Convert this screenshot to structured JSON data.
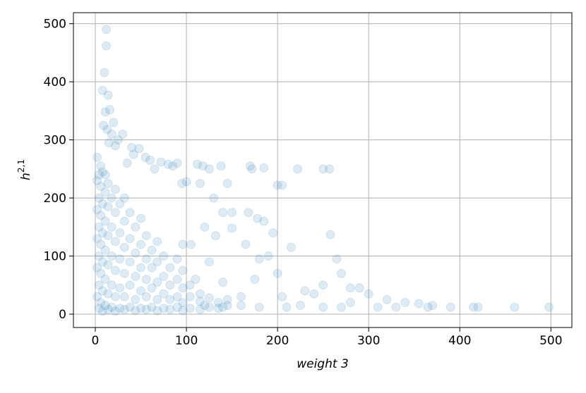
{
  "chart_data": {
    "type": "scatter",
    "xlabel": "weight 3",
    "ylabel": "h",
    "ylabel_superscript": "2,1",
    "color": "#1f77b4",
    "alpha": 0.15,
    "grid": true,
    "xlim": [
      -24,
      523
    ],
    "ylim": [
      -23,
      519
    ],
    "xticks": [
      0,
      100,
      200,
      300,
      400,
      500
    ],
    "yticks": [
      0,
      100,
      200,
      300,
      400,
      500
    ],
    "x": [
      12,
      12,
      10,
      8,
      14,
      16,
      11,
      20,
      9,
      13,
      18,
      25,
      30,
      15,
      22,
      40,
      48,
      42,
      55,
      60,
      72,
      80,
      90,
      35,
      65,
      85,
      100,
      95,
      112,
      118,
      125,
      138,
      145,
      170,
      172,
      185,
      200,
      205,
      222,
      250,
      257,
      115,
      130,
      140,
      150,
      168,
      178,
      185,
      195,
      258,
      120,
      132,
      150,
      165,
      180,
      190,
      215,
      265,
      270,
      200,
      250,
      280,
      290,
      300,
      230,
      240,
      280,
      320,
      340,
      310,
      330,
      355,
      370,
      365,
      390,
      415,
      420,
      460,
      498,
      250,
      270,
      210,
      180,
      160,
      140,
      120,
      225,
      160,
      140,
      125,
      105,
      110,
      175,
      205,
      2,
      2,
      2,
      2,
      2,
      2,
      4,
      4,
      4,
      4,
      4,
      4,
      6,
      6,
      6,
      6,
      6,
      6,
      8,
      8,
      8,
      8,
      8,
      8,
      11,
      11,
      11,
      11,
      11,
      11,
      14,
      14,
      14,
      14,
      14,
      14,
      18,
      18,
      18,
      18,
      18,
      22,
      22,
      22,
      22,
      22,
      22,
      27,
      27,
      27,
      27,
      27,
      32,
      32,
      32,
      32,
      32,
      32,
      38,
      38,
      38,
      38,
      38,
      44,
      44,
      44,
      44,
      44,
      50,
      50,
      50,
      50,
      50,
      56,
      56,
      56,
      56,
      56,
      62,
      62,
      62,
      62,
      68,
      68,
      68,
      68,
      68,
      75,
      75,
      75,
      75,
      82,
      82,
      82,
      82,
      90,
      90,
      90,
      90,
      96,
      96,
      96,
      96,
      96,
      104,
      104,
      104,
      115,
      115,
      115,
      125,
      125,
      135,
      135,
      145,
      145
    ],
    "values": [
      490,
      462,
      416,
      385,
      377,
      352,
      348,
      330,
      325,
      318,
      310,
      300,
      310,
      295,
      290,
      287,
      285,
      275,
      270,
      265,
      262,
      258,
      260,
      260,
      250,
      255,
      228,
      225,
      258,
      255,
      250,
      255,
      225,
      255,
      250,
      252,
      222,
      222,
      250,
      250,
      250,
      225,
      200,
      175,
      175,
      175,
      165,
      160,
      140,
      137,
      150,
      135,
      148,
      120,
      95,
      100,
      115,
      95,
      70,
      70,
      50,
      45,
      45,
      35,
      40,
      35,
      20,
      25,
      20,
      12,
      12,
      18,
      15,
      12,
      12,
      12,
      12,
      12,
      12,
      12,
      12,
      12,
      12,
      15,
      12,
      15,
      15,
      30,
      55,
      90,
      120,
      60,
      60,
      30,
      30,
      80,
      130,
      180,
      230,
      270,
      10,
      50,
      100,
      150,
      200,
      240,
      20,
      70,
      120,
      170,
      220,
      255,
      5,
      40,
      90,
      140,
      190,
      245,
      15,
      60,
      110,
      160,
      210,
      240,
      8,
      35,
      85,
      135,
      185,
      225,
      12,
      50,
      100,
      150,
      200,
      5,
      30,
      75,
      125,
      175,
      215,
      10,
      45,
      95,
      140,
      190,
      8,
      30,
      70,
      115,
      160,
      200,
      12,
      50,
      90,
      130,
      175,
      6,
      25,
      65,
      105,
      150,
      10,
      40,
      80,
      120,
      165,
      8,
      30,
      60,
      95,
      135,
      12,
      45,
      80,
      110,
      6,
      25,
      55,
      90,
      125,
      10,
      35,
      65,
      100,
      8,
      25,
      50,
      80,
      12,
      30,
      60,
      95,
      6,
      20,
      45,
      75,
      120,
      10,
      30,
      50,
      8,
      22,
      35,
      12,
      28,
      10,
      20,
      15,
      25
    ]
  }
}
